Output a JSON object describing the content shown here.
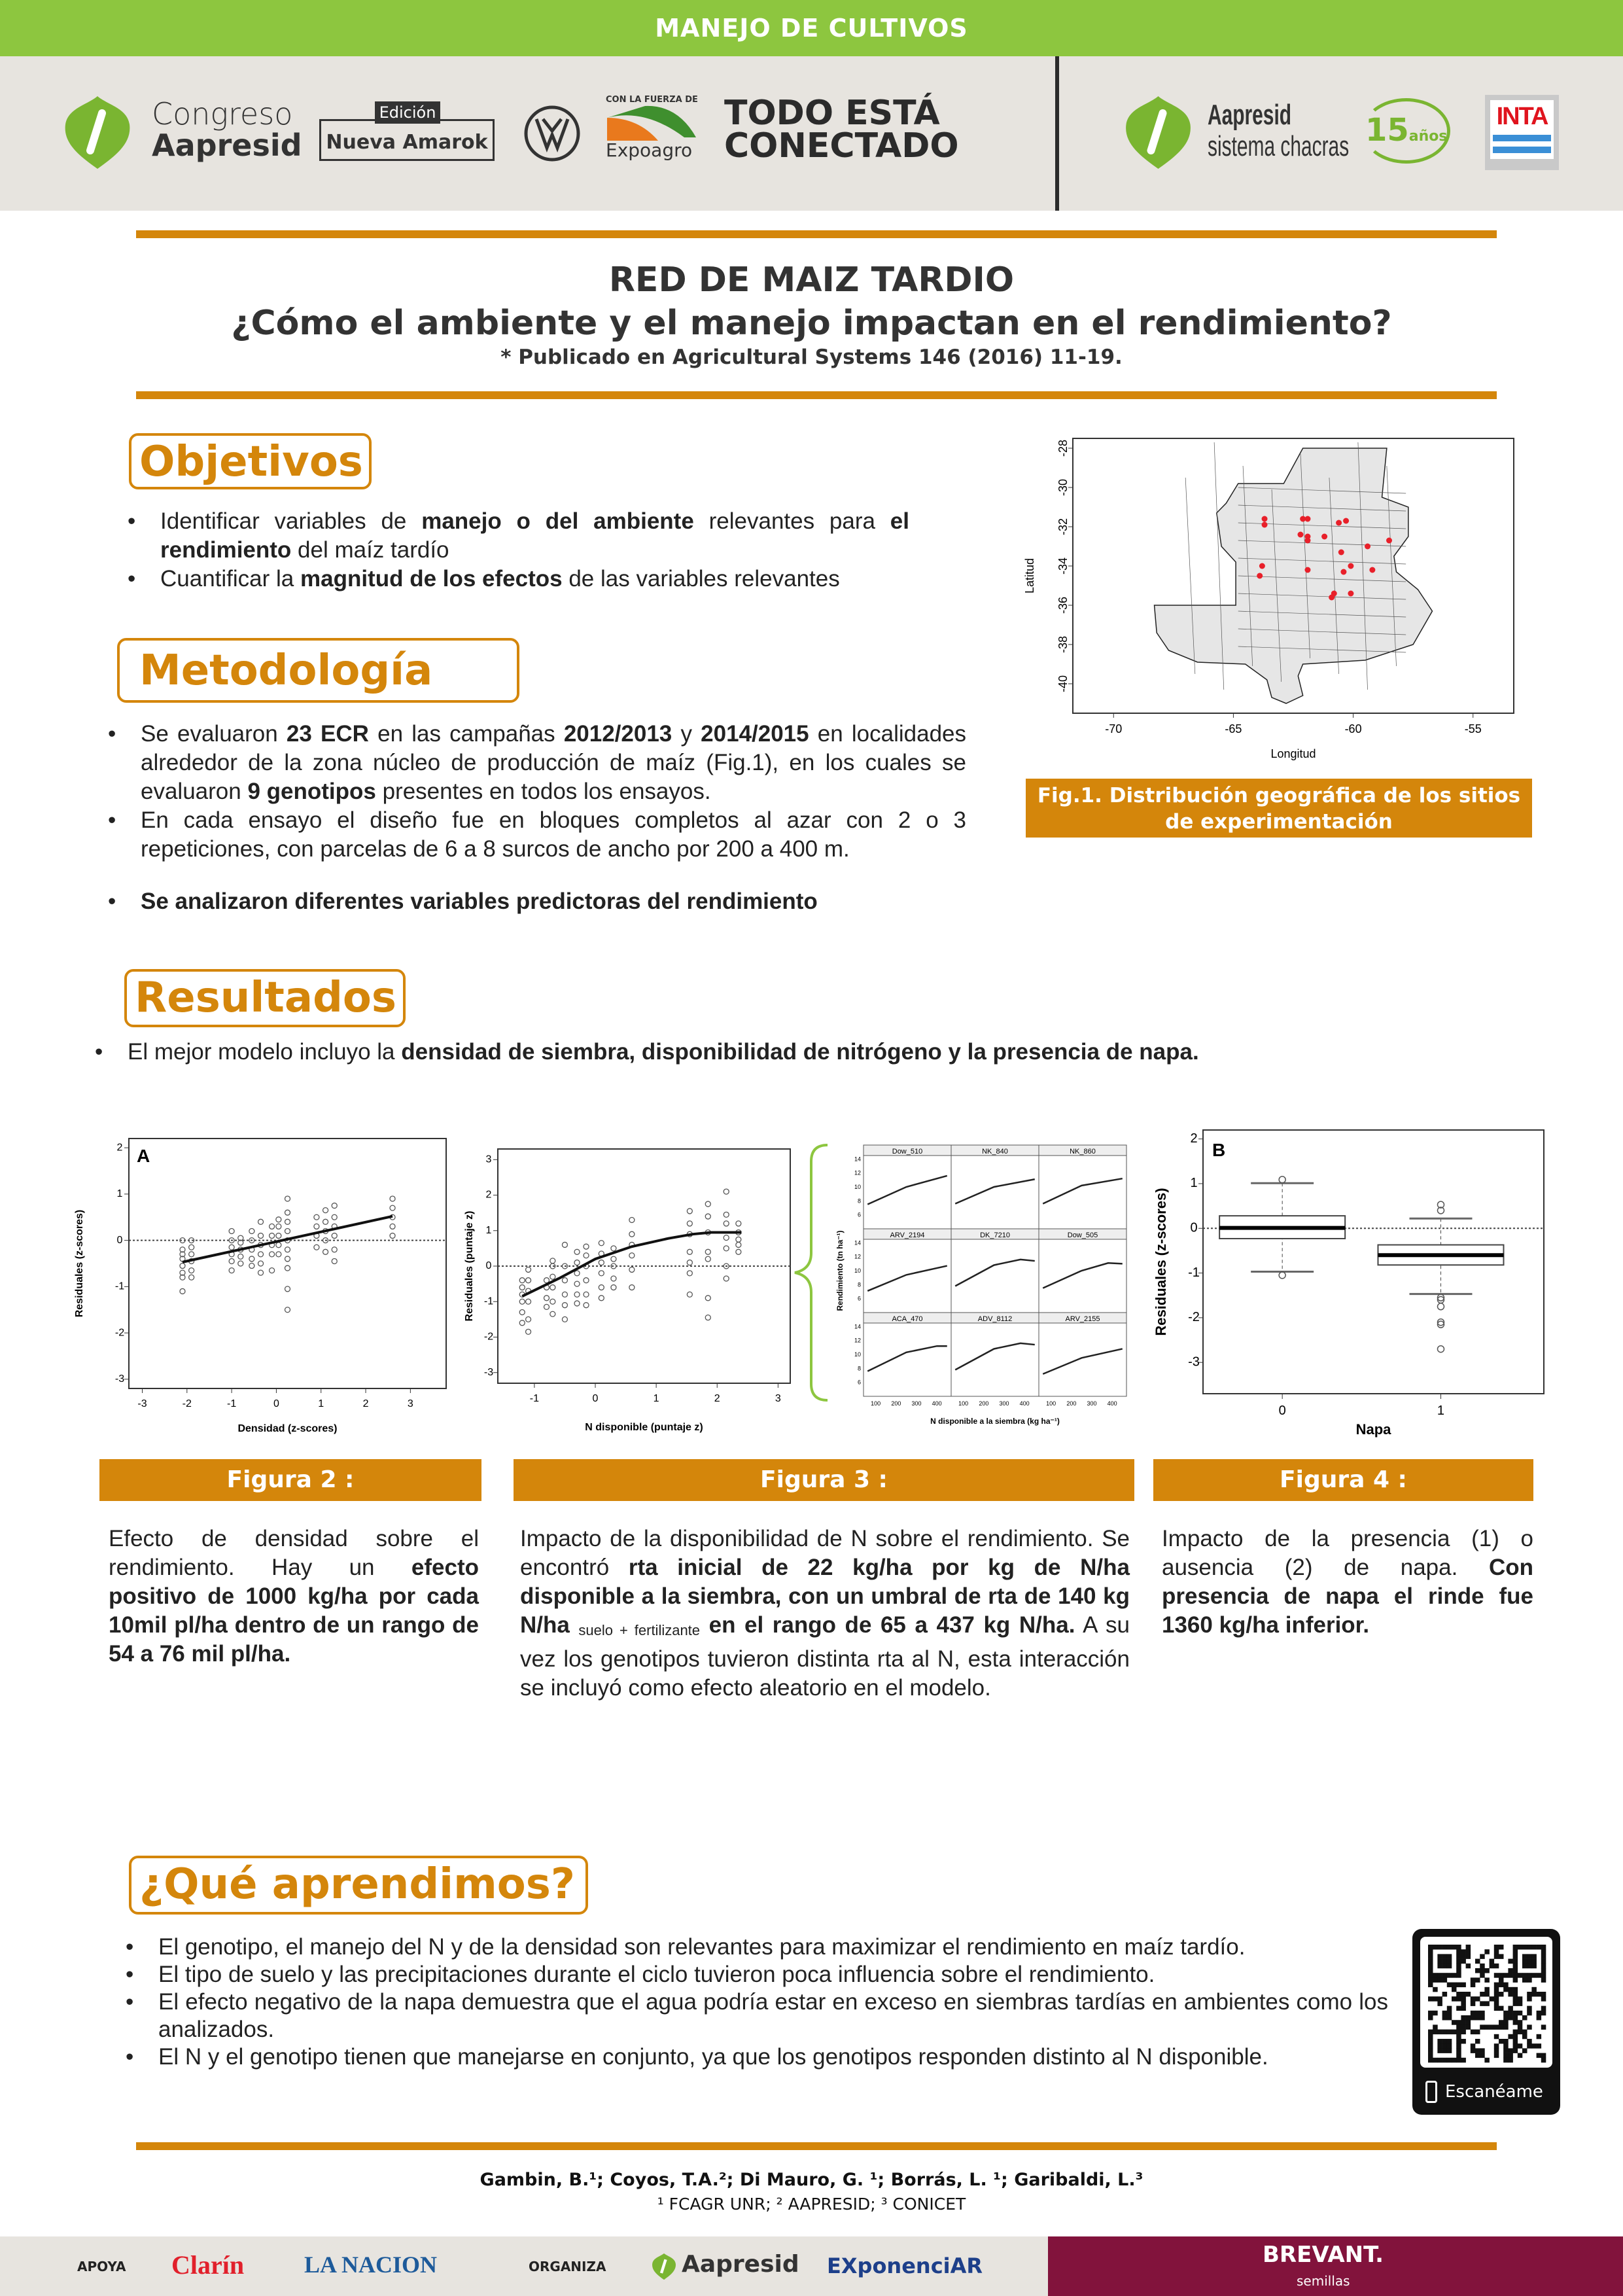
{
  "header": {
    "band_title": "MANEJO DE CULTIVOS",
    "logos": {
      "congreso_line1": "Congreso",
      "congreso_line2": "Aapresid",
      "edicion_top": "Edición",
      "edicion_main": "Nueva Amarok",
      "vw": "VW",
      "expoagro_top": "CON LA FUERZA DE",
      "expoagro": "Expoagro",
      "slogan_line1": "TODO ESTÁ",
      "slogan_line2": "CONECTADO",
      "chacras_line1": "Aapresid",
      "chacras_line2": "sistema chacras",
      "chacras_badge_num": "15",
      "chacras_badge_txt": "años",
      "inta": "INTA"
    }
  },
  "colors": {
    "green": "#8dc63f",
    "orange": "#d4860b",
    "maroon": "#82133c",
    "header_gray": "#e7e4df",
    "site_dot": "#e8202a"
  },
  "title": {
    "line1": "RED DE MAIZ TARDIO",
    "line2": "¿Cómo el ambiente y el manejo impactan en el rendimiento?",
    "publication": "* Publicado en Agricultural Systems 146 (2016) 11-19."
  },
  "objetivos": {
    "heading": "Objetivos",
    "bullets": [
      [
        {
          "t": " Identificar variables de "
        },
        {
          "t": "manejo o del ambiente",
          "b": true
        },
        {
          "t": " relevantes para "
        },
        {
          "t": "el rendimiento",
          "b": true
        },
        {
          "t": " del maíz tardío"
        }
      ],
      [
        {
          "t": " Cuantificar la "
        },
        {
          "t": "magnitud de los efectos",
          "b": true
        },
        {
          "t": " de las variables relevantes"
        }
      ]
    ]
  },
  "metodologia": {
    "heading": "Metodología",
    "bullets": [
      [
        {
          "t": "Se evaluaron "
        },
        {
          "t": "23 ECR",
          "b": true
        },
        {
          "t": " en las campañas "
        },
        {
          "t": "2012/2013",
          "b": true
        },
        {
          "t": " y "
        },
        {
          "t": "2014/2015",
          "b": true
        },
        {
          "t": " en localidades alrededor de la zona núcleo de producción de maíz (Fig.1), en los cuales se evaluaron "
        },
        {
          "t": "9 genotipos",
          "b": true
        },
        {
          "t": " presentes en todos los ensayos."
        }
      ],
      [
        {
          "t": " En cada ensayo el diseño fue en bloques completos al azar con 2 o 3 repeticiones, con parcelas de 6 a 8 surcos de ancho por 200 a 400 m."
        }
      ],
      [
        {
          "t": "Se analizaron diferentes variables predictoras del rendimiento",
          "b": true
        }
      ]
    ]
  },
  "map": {
    "caption": "Fig.1. Distribución geográfica  de los sitios de experimentación",
    "xlabel": "Longitud",
    "ylabel": "Latitud",
    "xlim": [
      -71.7,
      -53.3
    ],
    "ylim": [
      -41.5,
      -27.5
    ],
    "xticks": [
      -70,
      -65,
      -60,
      -55
    ],
    "yticks": [
      -28,
      -30,
      -32,
      -34,
      -36,
      -38,
      -40
    ],
    "sites": [
      [
        -63.7,
        -31.6
      ],
      [
        -63.7,
        -31.9
      ],
      [
        -62.1,
        -31.6
      ],
      [
        -61.9,
        -31.6
      ],
      [
        -60.6,
        -31.8
      ],
      [
        -60.3,
        -31.7
      ],
      [
        -62.2,
        -32.4
      ],
      [
        -61.9,
        -32.5
      ],
      [
        -61.9,
        -32.7
      ],
      [
        -61.2,
        -32.5
      ],
      [
        -58.5,
        -32.7
      ],
      [
        -59.4,
        -33.0
      ],
      [
        -60.5,
        -33.3
      ],
      [
        -63.8,
        -34.0
      ],
      [
        -63.9,
        -34.5
      ],
      [
        -61.9,
        -34.2
      ],
      [
        -60.1,
        -34.0
      ],
      [
        -60.4,
        -34.3
      ],
      [
        -59.2,
        -34.2
      ],
      [
        -60.8,
        -35.4
      ],
      [
        -60.9,
        -35.6
      ],
      [
        -60.1,
        -35.4
      ]
    ]
  },
  "resultados": {
    "heading": "Resultados",
    "bullet": [
      {
        "t": "El mejor modelo incluyo la "
      },
      {
        "t": "densidad  de siembra, disponibilidad de nitrógeno y la presencia de napa.",
        "b": true
      }
    ]
  },
  "chart_data": [
    {
      "type": "scatter",
      "panel": "A",
      "xlabel": "Densidad (z-scores)",
      "ylabel": "Residuales (z-scores)",
      "xlim": [
        -3.3,
        3.8
      ],
      "ylim": [
        -3.2,
        2.2
      ],
      "xticks": [
        -3,
        -2,
        -1,
        0,
        1,
        2,
        3
      ],
      "yticks": [
        -3,
        -2,
        -1,
        0,
        1,
        2
      ],
      "hline": 0,
      "columns": [
        [
          -2.1,
          [
            -1.1,
            -0.8,
            -0.7,
            -0.55,
            -0.4,
            -0.3,
            -0.2,
            0
          ]
        ],
        [
          -1.9,
          [
            -0.8,
            -0.65,
            -0.45,
            -0.3,
            -0.15,
            0
          ]
        ],
        [
          -1.0,
          [
            -0.65,
            -0.45,
            -0.3,
            -0.15,
            0,
            0.2
          ]
        ],
        [
          -0.8,
          [
            -0.5,
            -0.35,
            -0.2,
            -0.05,
            0.05
          ]
        ],
        [
          -0.55,
          [
            -0.55,
            -0.4,
            -0.2,
            0,
            0.2
          ]
        ],
        [
          -0.35,
          [
            -0.7,
            -0.5,
            -0.3,
            -0.1,
            0.1,
            0.4
          ]
        ],
        [
          -0.1,
          [
            -0.65,
            -0.3,
            -0.1,
            0.1,
            0.3
          ]
        ],
        [
          0.05,
          [
            -0.3,
            -0.1,
            0.1,
            0.3,
            0.45
          ]
        ],
        [
          0.25,
          [
            -1.5,
            -1.05,
            -0.6,
            -0.4,
            -0.2,
            0,
            0.2,
            0.4,
            0.6,
            0.9
          ]
        ],
        [
          0.9,
          [
            -0.15,
            0.1,
            0.3,
            0.5
          ]
        ],
        [
          1.1,
          [
            -0.25,
            0,
            0.2,
            0.4,
            0.65
          ]
        ],
        [
          1.3,
          [
            -0.45,
            -0.2,
            0.1,
            0.3,
            0.5,
            0.75
          ]
        ],
        [
          2.6,
          [
            0.1,
            0.3,
            0.5,
            0.7,
            0.9
          ]
        ]
      ],
      "fit": [
        [
          -2.1,
          -0.47
        ],
        [
          2.6,
          0.52
        ]
      ]
    },
    {
      "type": "scatter",
      "xlabel": "N disponible (puntaje z)",
      "ylabel": "Residuales (puntaje z)",
      "xlim": [
        -1.6,
        3.2
      ],
      "ylim": [
        -3.3,
        3.3
      ],
      "xticks": [
        -1,
        0,
        1,
        2,
        3
      ],
      "yticks": [
        -3,
        -2,
        -1,
        0,
        1,
        2,
        3
      ],
      "hline": 0,
      "columns": [
        [
          -1.2,
          [
            -1.6,
            -1.3,
            -1.0,
            -0.8,
            -0.6,
            -0.4
          ]
        ],
        [
          -1.1,
          [
            -1.85,
            -1.5,
            -1.0,
            -0.7,
            -0.4,
            -0.1
          ]
        ],
        [
          -0.8,
          [
            -1.15,
            -0.9,
            -0.6,
            -0.4
          ]
        ],
        [
          -0.7,
          [
            -1.35,
            -1.0,
            -0.6,
            -0.3,
            0,
            0.15
          ]
        ],
        [
          -0.5,
          [
            -1.5,
            -1.1,
            -0.8,
            -0.4,
            0,
            0.6
          ]
        ],
        [
          -0.3,
          [
            -1.05,
            -0.8,
            -0.5,
            -0.2,
            0.1,
            0.4
          ]
        ],
        [
          -0.15,
          [
            -1.1,
            -0.8,
            -0.4,
            0,
            0.3,
            0.55
          ]
        ],
        [
          0.1,
          [
            -0.9,
            -0.6,
            -0.2,
            0.1,
            0.35,
            0.65
          ]
        ],
        [
          0.3,
          [
            -0.6,
            -0.35,
            0,
            0.2,
            0.5
          ]
        ],
        [
          0.6,
          [
            -0.6,
            -0.1,
            0.3,
            0.6,
            0.9,
            1.3
          ]
        ],
        [
          1.55,
          [
            -0.8,
            -0.2,
            0.1,
            0.4,
            0.9,
            1.2,
            1.55
          ]
        ],
        [
          1.85,
          [
            -1.45,
            -0.9,
            0.2,
            0.4,
            0.95,
            1.4,
            1.75
          ]
        ],
        [
          2.15,
          [
            -0.35,
            0,
            0.5,
            0.8,
            1.2,
            1.45,
            2.1
          ]
        ],
        [
          2.35,
          [
            0.4,
            0.6,
            0.75,
            0.95,
            1.2
          ]
        ]
      ],
      "fit": [
        [
          -1.2,
          -0.85
        ],
        [
          -0.6,
          -0.35
        ],
        [
          0,
          0.2
        ],
        [
          0.6,
          0.55
        ],
        [
          1.2,
          0.78
        ],
        [
          1.6,
          0.9
        ],
        [
          1.9,
          0.95
        ],
        [
          2.4,
          0.95
        ]
      ]
    },
    {
      "type": "line",
      "xlabel": "N disponible a la siembra (kg ha⁻¹)",
      "ylabel": "Rendimiento (tn ha⁻¹)",
      "xlim": [
        40,
        470
      ],
      "ylim": [
        4,
        14.5
      ],
      "xticks": [
        100,
        200,
        300,
        400
      ],
      "yticks": [
        6,
        8,
        10,
        12,
        14
      ],
      "panels": [
        {
          "name": "Dow_510",
          "fit": [
            [
              60,
              7.5
            ],
            [
              250,
              10
            ],
            [
              450,
              11.6
            ]
          ]
        },
        {
          "name": "NK_840",
          "fit": [
            [
              60,
              7.6
            ],
            [
              250,
              10
            ],
            [
              450,
              11.1
            ]
          ]
        },
        {
          "name": "NK_860",
          "fit": [
            [
              60,
              7.6
            ],
            [
              250,
              10.2
            ],
            [
              450,
              11.2
            ]
          ]
        },
        {
          "name": "ARV_2194",
          "fit": [
            [
              60,
              7.1
            ],
            [
              250,
              9.4
            ],
            [
              450,
              10.7
            ]
          ]
        },
        {
          "name": "DK_7210",
          "fit": [
            [
              60,
              7.8
            ],
            [
              250,
              10.8
            ],
            [
              380,
              11.6
            ],
            [
              450,
              11.4
            ]
          ]
        },
        {
          "name": "Dow_505",
          "fit": [
            [
              60,
              7.5
            ],
            [
              250,
              10
            ],
            [
              380,
              11.1
            ],
            [
              450,
              11
            ]
          ]
        },
        {
          "name": "ACA_470",
          "fit": [
            [
              60,
              7.6
            ],
            [
              250,
              10.3
            ],
            [
              400,
              11.2
            ],
            [
              450,
              11.2
            ]
          ]
        },
        {
          "name": "ADV_8112",
          "fit": [
            [
              60,
              7.8
            ],
            [
              250,
              10.8
            ],
            [
              380,
              11.6
            ],
            [
              450,
              11.4
            ]
          ]
        },
        {
          "name": "ARV_2155",
          "fit": [
            [
              60,
              7.2
            ],
            [
              250,
              9.5
            ],
            [
              450,
              10.8
            ]
          ]
        }
      ]
    },
    {
      "type": "box",
      "panel": "B",
      "xlabel": "Napa",
      "ylabel": "Residuales (z-scores)",
      "ylim": [
        -3.7,
        2.2
      ],
      "yticks": [
        -3,
        -2,
        -1,
        0,
        1,
        2
      ],
      "categories": [
        "0",
        "1"
      ],
      "hline": 0,
      "boxes": [
        {
          "low": -0.97,
          "q1": -0.23,
          "median": 0.01,
          "q3": 0.28,
          "high": 1.01,
          "outliers": [
            1.09,
            -1.05
          ]
        },
        {
          "low": -1.47,
          "q1": -0.82,
          "median": -0.6,
          "q3": -0.37,
          "high": 0.22,
          "outliers": [
            0.53,
            0.4,
            -1.55,
            -1.6,
            -1.75,
            -2.1,
            -2.15,
            -2.7
          ]
        }
      ]
    }
  ],
  "figures": [
    {
      "label": "Figura 2 :",
      "desc": [
        {
          "t": "Efecto de densidad sobre el rendimiento. Hay un "
        },
        {
          "t": "efecto positivo de 1000 kg/ha por cada 10mil pl/ha dentro de un rango de 54 a 76 mil pl/ha.",
          "b": true
        }
      ]
    },
    {
      "label": "Figura 3 :",
      "desc": [
        {
          "t": "Impacto de la disponibilidad de N sobre el rendimiento. Se encontró "
        },
        {
          "t": "rta inicial de 22 kg/ha por kg de N/ha disponible a la siembra, con un umbral de rta de 140 kg N/ha ",
          "b": true
        },
        {
          "t": "suelo + fertilizante",
          "sub": true
        },
        {
          "t": " en el rango de 65 a 437 kg N/ha.",
          "b": true
        },
        {
          "t": " A su vez los genotipos tuvieron distinta rta al N, esta interacción se incluyó como efecto aleatorio en el modelo."
        }
      ]
    },
    {
      "label": "Figura 4 :",
      "desc": [
        {
          "t": "Impacto de la presencia (1) o ausencia (2) de napa. "
        },
        {
          "t": "Con presencia de napa el rinde fue 1360 kg/ha inferior.",
          "b": true
        }
      ]
    }
  ],
  "aprendimos": {
    "heading": "¿Qué aprendimos?",
    "bullets": [
      "El genotipo, el manejo del N y de la densidad son relevantes para maximizar el rendimiento en maíz tardío.",
      "El tipo de suelo y las precipitaciones durante el ciclo tuvieron poca influencia sobre el rendimiento.",
      "El efecto negativo de la napa demuestra que el agua podría estar en exceso en siembras tardías en ambientes como los analizados.",
      "El N y el genotipo tienen que manejarse en conjunto, ya que los genotipos responden distinto al N disponible."
    ],
    "qr_label": "Escanéame",
    "qr_icon": "smartphone-icon"
  },
  "authors": {
    "names": "Gambin, B.¹; Coyos, T.A.²; Di Mauro, G. ¹; Borrás, L. ¹; Garibaldi, L.³",
    "affiliations": "¹ FCAGR UNR; ² AAPRESID; ³ CONICET"
  },
  "footer": {
    "apoya": "APOYA",
    "clarin": "Clarín",
    "nacion": "LA NACION",
    "organiza": "ORGANIZA",
    "aapresid": "Aapresid",
    "exponenciar": "EXponenciAR",
    "brevant": "BREVANT.",
    "brevant_sub": "semillas"
  }
}
